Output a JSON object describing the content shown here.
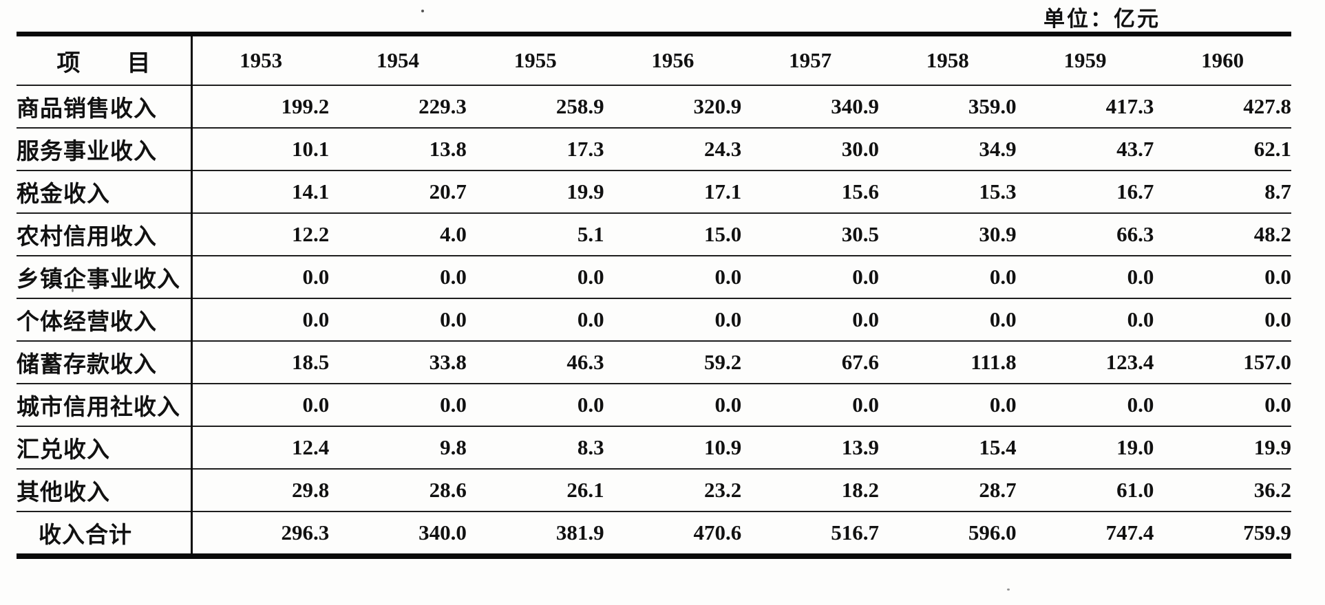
{
  "unit_label": "单位：亿元",
  "table": {
    "header": {
      "item_label": "项　　目",
      "years": [
        "1953",
        "1954",
        "1955",
        "1956",
        "1957",
        "1958",
        "1959",
        "1960"
      ]
    },
    "rows": [
      {
        "label": "商品销售收入",
        "values": [
          "199.2",
          "229.3",
          "258.9",
          "320.9",
          "340.9",
          "359.0",
          "417.3",
          "427.8"
        ]
      },
      {
        "label": "服务事业收入",
        "values": [
          "10.1",
          "13.8",
          "17.3",
          "24.3",
          "30.0",
          "34.9",
          "43.7",
          "62.1"
        ]
      },
      {
        "label": "税金收入",
        "values": [
          "14.1",
          "20.7",
          "19.9",
          "17.1",
          "15.6",
          "15.3",
          "16.7",
          "8.7"
        ]
      },
      {
        "label": "农村信用收入",
        "values": [
          "12.2",
          "4.0",
          "5.1",
          "15.0",
          "30.5",
          "30.9",
          "66.3",
          "48.2"
        ]
      },
      {
        "label": "乡镇企事业收入",
        "values": [
          "0.0",
          "0.0",
          "0.0",
          "0.0",
          "0.0",
          "0.0",
          "0.0",
          "0.0"
        ]
      },
      {
        "label": "个体经营收入",
        "values": [
          "0.0",
          "0.0",
          "0.0",
          "0.0",
          "0.0",
          "0.0",
          "0.0",
          "0.0"
        ]
      },
      {
        "label": "储蓄存款收入",
        "values": [
          "18.5",
          "33.8",
          "46.3",
          "59.2",
          "67.6",
          "111.8",
          "123.4",
          "157.0"
        ]
      },
      {
        "label": "城市信用社收入",
        "values": [
          "0.0",
          "0.0",
          "0.0",
          "0.0",
          "0.0",
          "0.0",
          "0.0",
          "0.0"
        ]
      },
      {
        "label": "汇兑收入",
        "values": [
          "12.4",
          "9.8",
          "8.3",
          "10.9",
          "13.9",
          "15.4",
          "19.0",
          "19.9"
        ]
      },
      {
        "label": "其他收入",
        "values": [
          "29.8",
          "28.6",
          "26.1",
          "23.2",
          "18.2",
          "28.7",
          "61.0",
          "36.2"
        ]
      },
      {
        "label": "收入合计",
        "values": [
          "296.3",
          "340.0",
          "381.9",
          "470.6",
          "516.7",
          "596.0",
          "747.4",
          "759.9"
        ],
        "is_total": true
      }
    ]
  },
  "colors": {
    "text": "#111111",
    "background": "#fdfdfc",
    "rule": "#0a0a0a"
  }
}
